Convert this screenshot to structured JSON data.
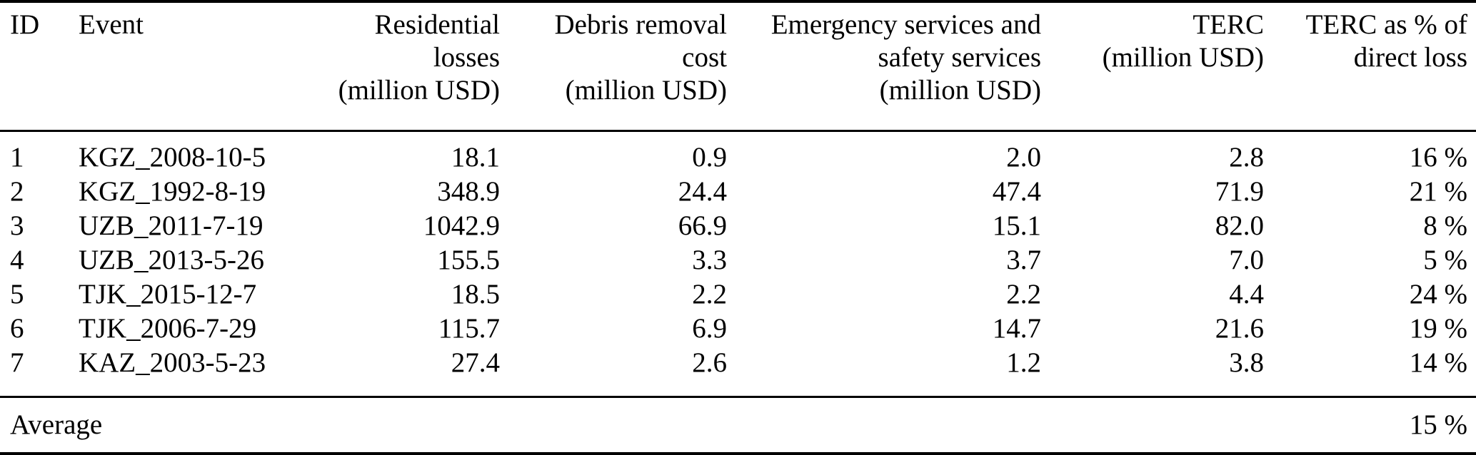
{
  "colors": {
    "background": "#ffffff",
    "text": "#000000",
    "rule": "#000000"
  },
  "table": {
    "columns": [
      {
        "key": "id",
        "label": "ID",
        "align": "left"
      },
      {
        "key": "event",
        "label": "Event",
        "align": "left"
      },
      {
        "key": "residential",
        "label": "Residential\nlosses\n(million USD)",
        "align": "right"
      },
      {
        "key": "debris",
        "label": "Debris removal\ncost\n(million USD)",
        "align": "right"
      },
      {
        "key": "emergency",
        "label": "Emergency services and\nsafety services\n(million USD)",
        "align": "right"
      },
      {
        "key": "terc",
        "label": "TERC\n(million USD)",
        "align": "right"
      },
      {
        "key": "terc_pct",
        "label": "TERC as % of\ndirect loss",
        "align": "right"
      }
    ],
    "rows": [
      {
        "id": "1",
        "event": "KGZ_2008-10-5",
        "residential": "18.1",
        "debris": "0.9",
        "emergency": "2.0",
        "terc": "2.8",
        "terc_pct": "16 %"
      },
      {
        "id": "2",
        "event": "KGZ_1992-8-19",
        "residential": "348.9",
        "debris": "24.4",
        "emergency": "47.4",
        "terc": "71.9",
        "terc_pct": "21 %"
      },
      {
        "id": "3",
        "event": "UZB_2011-7-19",
        "residential": "1042.9",
        "debris": "66.9",
        "emergency": "15.1",
        "terc": "82.0",
        "terc_pct": "8 %"
      },
      {
        "id": "4",
        "event": "UZB_2013-5-26",
        "residential": "155.5",
        "debris": "3.3",
        "emergency": "3.7",
        "terc": "7.0",
        "terc_pct": "5 %"
      },
      {
        "id": "5",
        "event": "TJK_2015-12-7",
        "residential": "18.5",
        "debris": "2.2",
        "emergency": "2.2",
        "terc": "4.4",
        "terc_pct": "24 %"
      },
      {
        "id": "6",
        "event": "TJK_2006-7-29",
        "residential": "115.7",
        "debris": "6.9",
        "emergency": "14.7",
        "terc": "21.6",
        "terc_pct": "19 %"
      },
      {
        "id": "7",
        "event": "KAZ_2003-5-23",
        "residential": "27.4",
        "debris": "2.6",
        "emergency": "1.2",
        "terc": "3.8",
        "terc_pct": "14 %"
      }
    ],
    "footer": {
      "label": "Average",
      "terc_pct": "15 %"
    }
  }
}
